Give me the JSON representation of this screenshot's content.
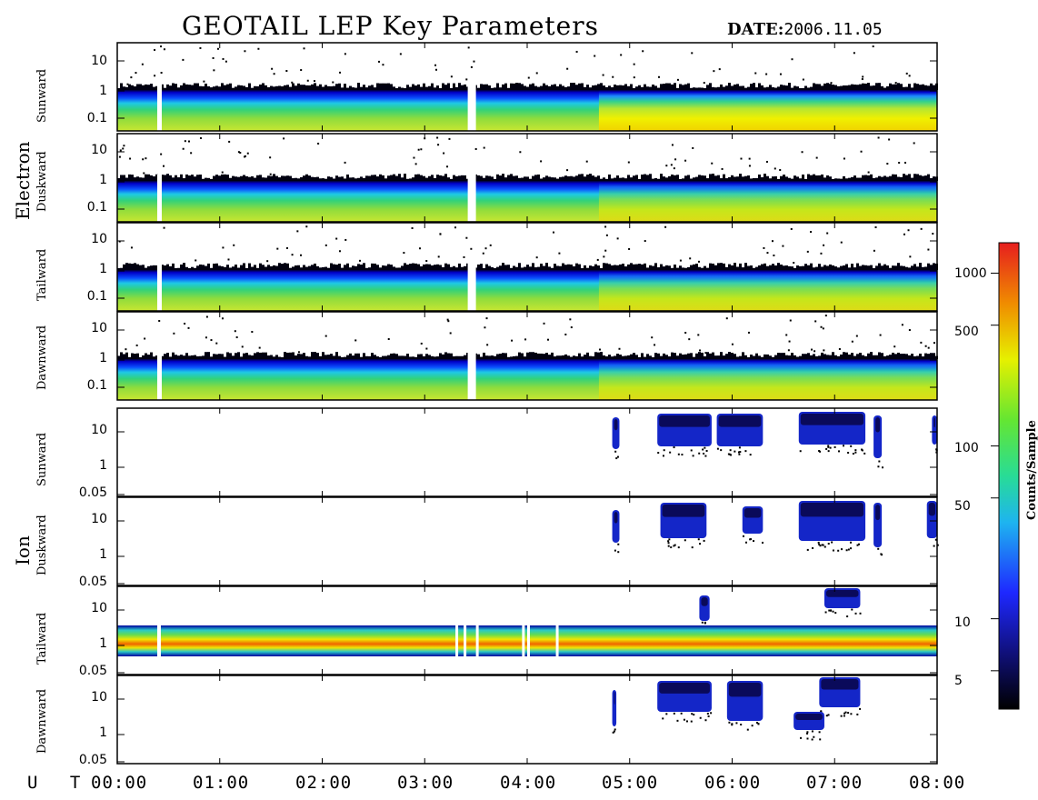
{
  "title": "GEOTAIL LEP Key Parameters",
  "date_label": "DATE:",
  "date_value": "2006.11.05",
  "ut_label": "U T",
  "colorbar": {
    "label": "Counts/Sample",
    "ticks": [
      "1000",
      "500",
      "100",
      "50",
      "10",
      "5"
    ],
    "tick_values": [
      1000,
      500,
      100,
      50,
      10,
      5
    ],
    "range": [
      3,
      1500
    ],
    "scale": "log",
    "colormap": "rainbow (black-blue-cyan-green-yellow-red)"
  },
  "chart_data": [
    {
      "type": "heatmap",
      "group": "Electron",
      "panel": "Sunward",
      "ylabel": "Sunward",
      "yscale": "log",
      "yticks": [
        "10",
        "1",
        "0.1"
      ],
      "data_gaps_ut": [
        "00:23",
        "03:25"
      ],
      "intensity_change_ut": "04:43"
    },
    {
      "type": "heatmap",
      "group": "Electron",
      "panel": "Duskward",
      "ylabel": "Duskward",
      "yscale": "log",
      "yticks": [
        "10",
        "1",
        "0.1"
      ],
      "data_gaps_ut": [
        "00:23",
        "03:25"
      ]
    },
    {
      "type": "heatmap",
      "group": "Electron",
      "panel": "Tailward",
      "ylabel": "Tailward",
      "yscale": "log",
      "yticks": [
        "10",
        "1",
        "0.1"
      ],
      "data_gaps_ut": [
        "00:23",
        "03:25"
      ]
    },
    {
      "type": "heatmap",
      "group": "Electron",
      "panel": "Dawnward",
      "ylabel": "Dawnward",
      "yscale": "log",
      "yticks": [
        "10",
        "1",
        "0.1"
      ],
      "data_gaps_ut": [
        "00:23",
        "03:25"
      ]
    },
    {
      "type": "heatmap",
      "group": "Ion",
      "panel": "Sunward",
      "ylabel": "Sunward",
      "yscale": "log",
      "yticks": [
        "10",
        "1",
        "0.05"
      ]
    },
    {
      "type": "heatmap",
      "group": "Ion",
      "panel": "Duskward",
      "ylabel": "Duskward",
      "yscale": "log",
      "yticks": [
        "10",
        "1",
        "0.05"
      ]
    },
    {
      "type": "heatmap",
      "group": "Ion",
      "panel": "Tailward",
      "ylabel": "Tailward",
      "yscale": "log",
      "yticks": [
        "10",
        "1",
        "0.05"
      ]
    },
    {
      "type": "heatmap",
      "group": "Ion",
      "panel": "Dawnward",
      "ylabel": "Dawnward",
      "yscale": "log",
      "yticks": [
        "10",
        "1",
        "0.05"
      ]
    }
  ],
  "xaxis": {
    "ticks": [
      "00:00",
      "01:00",
      "02:00",
      "03:00",
      "04:00",
      "05:00",
      "06:00",
      "07:00",
      "08:00"
    ],
    "range": [
      "00:00",
      "08:00"
    ]
  },
  "groups": [
    "Electron",
    "Ion"
  ]
}
